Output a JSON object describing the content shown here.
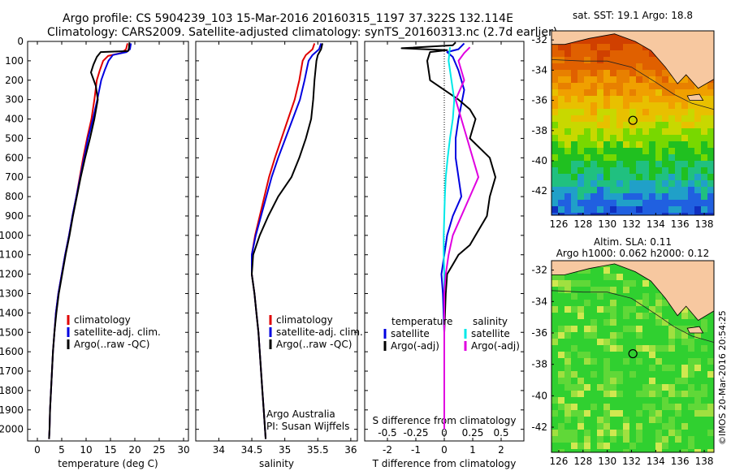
{
  "header": {
    "line1": "Argo profile: CS 5904239_103 15-Mar-2016 20160315_1197 37.322S 132.114E",
    "line2": "Climatology: CARS2009. Satellite-adjusted climatology: synTS_20160313.nc (2.7d earlier)"
  },
  "colors": {
    "climatology": "#e00000",
    "satellite": "#0000e0",
    "argo": "#000000",
    "cyan": "#00e8e8",
    "magenta": "#e000e0",
    "land": "#f7c8a0"
  },
  "chart_data": [
    {
      "type": "line",
      "id": "temperature",
      "xlabel": "temperature (deg C)",
      "ylabel": "",
      "xlim": [
        -2,
        31
      ],
      "ylim": [
        0,
        2060
      ],
      "y_inverted": true,
      "x_ticks": [
        0,
        5,
        10,
        15,
        20,
        25,
        30
      ],
      "y_ticks": [
        0,
        100,
        200,
        300,
        400,
        500,
        600,
        700,
        800,
        900,
        1000,
        1100,
        1200,
        1300,
        1400,
        1500,
        1600,
        1700,
        1800,
        1900,
        2000
      ],
      "legend": [
        "climatology",
        "satellite-adj. clim.",
        "Argo(..raw -QC)"
      ],
      "legend_position": "center-left",
      "series": [
        {
          "name": "climatology",
          "color": "#e00000",
          "points": [
            [
              18.5,
              10
            ],
            [
              18.2,
              40
            ],
            [
              17.2,
              60
            ],
            [
              14.5,
              75
            ],
            [
              13.5,
              100
            ],
            [
              12.8,
              150
            ],
            [
              12.2,
              200
            ],
            [
              11.7,
              300
            ],
            [
              11.1,
              400
            ],
            [
              10.2,
              500
            ],
            [
              9.4,
              600
            ],
            [
              8.7,
              700
            ],
            [
              8,
              800
            ],
            [
              7.2,
              900
            ],
            [
              6.5,
              1000
            ],
            [
              5.7,
              1100
            ],
            [
              5,
              1200
            ],
            [
              4.3,
              1300
            ],
            [
              3.8,
              1400
            ],
            [
              3.5,
              1500
            ],
            [
              3.2,
              1600
            ],
            [
              3,
              1700
            ],
            [
              2.8,
              1800
            ],
            [
              2.6,
              1900
            ],
            [
              2.5,
              2000
            ],
            [
              2.4,
              2050
            ]
          ]
        },
        {
          "name": "satellite-adj. clim.",
          "color": "#0000e0",
          "points": [
            [
              19.2,
              10
            ],
            [
              19,
              40
            ],
            [
              18.3,
              55
            ],
            [
              15.5,
              70
            ],
            [
              14.6,
              100
            ],
            [
              13.8,
              150
            ],
            [
              13.1,
              200
            ],
            [
              12.3,
              300
            ],
            [
              11.4,
              400
            ],
            [
              10.4,
              500
            ],
            [
              9.6,
              600
            ],
            [
              8.8,
              700
            ],
            [
              8,
              800
            ],
            [
              7.2,
              900
            ],
            [
              6.5,
              1000
            ],
            [
              5.7,
              1100
            ],
            [
              5,
              1200
            ],
            [
              4.3,
              1300
            ],
            [
              3.8,
              1400
            ],
            [
              3.5,
              1500
            ],
            [
              3.2,
              1600
            ],
            [
              3,
              1700
            ],
            [
              2.8,
              1800
            ],
            [
              2.6,
              1900
            ],
            [
              2.5,
              2000
            ],
            [
              2.4,
              2050
            ]
          ]
        },
        {
          "name": "Argo(..raw -QC)",
          "color": "#000000",
          "points": [
            [
              18.9,
              5
            ],
            [
              18.8,
              35
            ],
            [
              18.6,
              50
            ],
            [
              13,
              55
            ],
            [
              12.2,
              80
            ],
            [
              11.5,
              120
            ],
            [
              11,
              160
            ],
            [
              12,
              230
            ],
            [
              12.4,
              300
            ],
            [
              11.7,
              400
            ],
            [
              10.8,
              500
            ],
            [
              9.8,
              600
            ],
            [
              8.9,
              700
            ],
            [
              8.1,
              800
            ],
            [
              7.3,
              900
            ],
            [
              6.6,
              1000
            ],
            [
              5.8,
              1100
            ],
            [
              5.1,
              1200
            ],
            [
              4.4,
              1300
            ],
            [
              3.9,
              1400
            ],
            [
              3.5,
              1500
            ],
            [
              3.2,
              1600
            ],
            [
              3,
              1700
            ],
            [
              2.8,
              1800
            ],
            [
              2.6,
              1900
            ],
            [
              2.5,
              2000
            ],
            [
              2.4,
              2050
            ]
          ]
        }
      ]
    },
    {
      "type": "line",
      "id": "salinity",
      "xlabel": "salinity",
      "xlim": [
        33.65,
        36.1
      ],
      "ylim": [
        0,
        2060
      ],
      "y_inverted": true,
      "x_ticks": [
        34,
        34.5,
        35,
        35.5,
        36
      ],
      "legend": [
        "climatology",
        "satellite-adj. clim.",
        "Argo(..raw -QC)"
      ],
      "legend_position": "center-right",
      "annotation": [
        "Argo Australia",
        "PI: Susan Wijffels"
      ],
      "series": [
        {
          "name": "climatology",
          "color": "#e00000",
          "points": [
            [
              35.45,
              10
            ],
            [
              35.42,
              40
            ],
            [
              35.32,
              70
            ],
            [
              35.27,
              100
            ],
            [
              35.22,
              200
            ],
            [
              35.15,
              300
            ],
            [
              35.05,
              400
            ],
            [
              34.95,
              500
            ],
            [
              34.85,
              600
            ],
            [
              34.76,
              700
            ],
            [
              34.69,
              800
            ],
            [
              34.62,
              900
            ],
            [
              34.55,
              1000
            ],
            [
              34.5,
              1100
            ],
            [
              34.5,
              1200
            ],
            [
              34.54,
              1300
            ],
            [
              34.57,
              1400
            ],
            [
              34.6,
              1500
            ],
            [
              34.62,
              1600
            ],
            [
              34.64,
              1700
            ],
            [
              34.66,
              1800
            ],
            [
              34.68,
              1900
            ],
            [
              34.7,
              2000
            ],
            [
              34.71,
              2050
            ]
          ]
        },
        {
          "name": "satellite-adj. clim.",
          "color": "#0000e0",
          "points": [
            [
              35.55,
              10
            ],
            [
              35.52,
              40
            ],
            [
              35.42,
              70
            ],
            [
              35.36,
              100
            ],
            [
              35.3,
              200
            ],
            [
              35.23,
              300
            ],
            [
              35.12,
              400
            ],
            [
              35.01,
              500
            ],
            [
              34.9,
              600
            ],
            [
              34.8,
              700
            ],
            [
              34.72,
              800
            ],
            [
              34.64,
              900
            ],
            [
              34.56,
              1000
            ],
            [
              34.5,
              1100
            ],
            [
              34.5,
              1200
            ],
            [
              34.54,
              1300
            ],
            [
              34.57,
              1400
            ],
            [
              34.6,
              1500
            ],
            [
              34.62,
              1600
            ],
            [
              34.64,
              1700
            ],
            [
              34.66,
              1800
            ],
            [
              34.68,
              1900
            ],
            [
              34.7,
              2000
            ],
            [
              34.71,
              2050
            ]
          ]
        },
        {
          "name": "Argo(..raw -QC)",
          "color": "#000000",
          "points": [
            [
              35.57,
              10
            ],
            [
              35.55,
              40
            ],
            [
              35.5,
              70
            ],
            [
              35.48,
              100
            ],
            [
              35.45,
              200
            ],
            [
              35.43,
              300
            ],
            [
              35.4,
              400
            ],
            [
              35.32,
              500
            ],
            [
              35.22,
              600
            ],
            [
              35.1,
              700
            ],
            [
              34.9,
              800
            ],
            [
              34.75,
              900
            ],
            [
              34.62,
              1000
            ],
            [
              34.52,
              1100
            ],
            [
              34.5,
              1200
            ],
            [
              34.54,
              1300
            ],
            [
              34.57,
              1400
            ],
            [
              34.6,
              1500
            ],
            [
              34.62,
              1600
            ],
            [
              34.64,
              1700
            ],
            [
              34.66,
              1800
            ],
            [
              34.68,
              1900
            ],
            [
              34.7,
              2000
            ],
            [
              34.71,
              2050
            ]
          ]
        }
      ]
    },
    {
      "type": "line",
      "id": "differences",
      "xlabel": "T difference from climatology",
      "xlabel_top": "S difference from climatology",
      "xlim": [
        -2.8,
        2.8
      ],
      "ylim": [
        0,
        2060
      ],
      "y_inverted": true,
      "x_ticks": [
        -2,
        -1,
        0,
        1,
        2
      ],
      "x_ticks_top": [
        "-0.5",
        "-0.25",
        "0",
        "0.25",
        "0.5"
      ],
      "legend_title_left": "temperature",
      "legend_title_right": "salinity",
      "legend_left": [
        "satellite",
        "Argo(-adj)"
      ],
      "legend_right": [
        "satellite",
        "Argo(-adj)"
      ],
      "series": [
        {
          "name": "temperature satellite",
          "color": "#0000e0",
          "points": [
            [
              0.7,
              10
            ],
            [
              0.5,
              40
            ],
            [
              0.1,
              55
            ],
            [
              0.3,
              80
            ],
            [
              0.5,
              150
            ],
            [
              0.7,
              250
            ],
            [
              0.5,
              400
            ],
            [
              0.4,
              500
            ],
            [
              0.4,
              600
            ],
            [
              0.5,
              700
            ],
            [
              0.6,
              800
            ],
            [
              0.3,
              900
            ],
            [
              0.1,
              1000
            ],
            [
              0,
              1100
            ],
            [
              -0.1,
              1200
            ],
            [
              -0.05,
              1300
            ],
            [
              0,
              1500
            ],
            [
              0,
              1700
            ],
            [
              0,
              2000
            ]
          ]
        },
        {
          "name": "temperature Argo(-adj)",
          "color": "#000000",
          "points": [
            [
              0.4,
              5
            ],
            [
              0.3,
              20
            ],
            [
              -1.5,
              35
            ],
            [
              0.1,
              45
            ],
            [
              -0.5,
              55
            ],
            [
              -0.6,
              100
            ],
            [
              -0.5,
              200
            ],
            [
              0.5,
              300
            ],
            [
              0.9,
              350
            ],
            [
              1.1,
              400
            ],
            [
              0.9,
              500
            ],
            [
              1.6,
              600
            ],
            [
              1.8,
              700
            ],
            [
              1.6,
              800
            ],
            [
              1.5,
              900
            ],
            [
              1.1,
              1000
            ],
            [
              0.9,
              1050
            ],
            [
              0.5,
              1100
            ],
            [
              0.3,
              1150
            ],
            [
              0.1,
              1200
            ],
            [
              0.05,
              1300
            ],
            [
              0,
              1500
            ],
            [
              0,
              1700
            ],
            [
              0,
              2000
            ]
          ]
        },
        {
          "name": "salinity satellite",
          "color": "#00e8e8",
          "points": [
            [
              0.2,
              30
            ],
            [
              0.15,
              100
            ],
            [
              0.25,
              200
            ],
            [
              0.35,
              300
            ],
            [
              0.3,
              400
            ],
            [
              0.2,
              500
            ],
            [
              0.12,
              600
            ],
            [
              0.05,
              700
            ],
            [
              0.02,
              800
            ],
            [
              0,
              900
            ],
            [
              -0.02,
              1000
            ],
            [
              -0.02,
              1100
            ],
            [
              0,
              1200
            ],
            [
              0,
              1500
            ],
            [
              0,
              2000
            ]
          ]
        },
        {
          "name": "salinity Argo(-adj)",
          "color": "#e000e0",
          "points": [
            [
              0.9,
              30
            ],
            [
              0.7,
              60
            ],
            [
              0.5,
              100
            ],
            [
              0.7,
              200
            ],
            [
              0.4,
              300
            ],
            [
              0.6,
              400
            ],
            [
              0.8,
              500
            ],
            [
              1.0,
              600
            ],
            [
              1.2,
              700
            ],
            [
              0.9,
              800
            ],
            [
              0.6,
              900
            ],
            [
              0.3,
              1000
            ],
            [
              0.15,
              1100
            ],
            [
              0.05,
              1200
            ],
            [
              0,
              1300
            ],
            [
              0,
              1500
            ],
            [
              0,
              2000
            ]
          ]
        }
      ]
    }
  ],
  "maps": {
    "sst": {
      "title": "sat. SST: 19.1  Argo: 18.8",
      "x_ticks": [
        "126",
        "128",
        "130",
        "132",
        "134",
        "136",
        "138"
      ],
      "y_ticks": [
        "-32",
        "-34",
        "-36",
        "-38",
        "-40",
        "-42"
      ]
    },
    "sla": {
      "title1": "Altim. SLA: 0.11",
      "title2": "Argo h1000: 0.062 h2000: 0.12",
      "x_ticks": [
        "126",
        "128",
        "130",
        "132",
        "134",
        "136",
        "138"
      ],
      "y_ticks": [
        "-32",
        "-34",
        "-36",
        "-38",
        "-40",
        "-42"
      ]
    },
    "credit": "©IMOS 20-Mar-2016 20:54:25"
  }
}
